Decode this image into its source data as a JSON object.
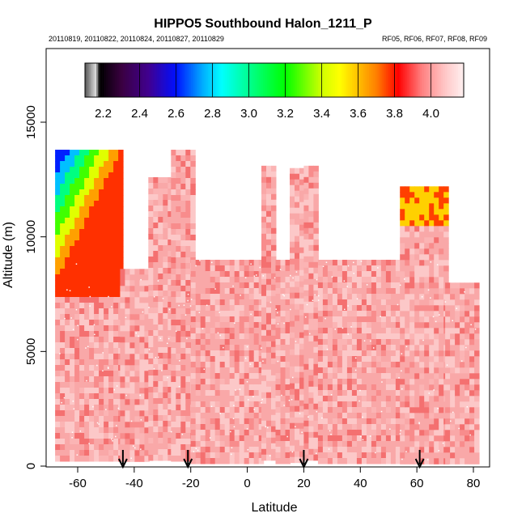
{
  "chart_data": {
    "type": "heatmap",
    "title": "HIPPO5 Southbound Halon_1211_P",
    "subtitle_left": "20110819, 20110822, 20110824, 20110827, 20110829",
    "subtitle_right": "RF05, RF06, RF07, RF08, RF09",
    "xlabel": "Latitude",
    "ylabel": "Altitude (m)",
    "xlim": [
      -70,
      85
    ],
    "ylim": [
      0,
      18000
    ],
    "x_ticks": [
      -60,
      -40,
      -20,
      0,
      20,
      40,
      60,
      80
    ],
    "y_ticks": [
      0,
      5000,
      10000,
      15000
    ],
    "colorbar": {
      "ticks": [
        2.2,
        2.4,
        2.6,
        2.8,
        3.0,
        3.2,
        3.4,
        3.6,
        3.8,
        4.0
      ],
      "tick_labels": [
        "2.2",
        "2.4",
        "2.6",
        "2.8",
        "3.0",
        "3.2",
        "3.4",
        "3.6",
        "3.8",
        "4.0"
      ],
      "range": [
        2.1,
        4.18
      ],
      "stops": [
        {
          "v": 2.1,
          "c": "#555555"
        },
        {
          "v": 2.16,
          "c": "#dddddd"
        },
        {
          "v": 2.18,
          "c": "#000000"
        },
        {
          "v": 2.3,
          "c": "#3a0040"
        },
        {
          "v": 2.45,
          "c": "#400090"
        },
        {
          "v": 2.6,
          "c": "#0010ff"
        },
        {
          "v": 2.75,
          "c": "#00b0ff"
        },
        {
          "v": 2.85,
          "c": "#00ffff"
        },
        {
          "v": 3.0,
          "c": "#00ff90"
        },
        {
          "v": 3.2,
          "c": "#00ff00"
        },
        {
          "v": 3.4,
          "c": "#d0ff00"
        },
        {
          "v": 3.5,
          "c": "#ffff00"
        },
        {
          "v": 3.7,
          "c": "#ff8000"
        },
        {
          "v": 3.82,
          "c": "#ff0000"
        },
        {
          "v": 3.95,
          "c": "#ff8080"
        },
        {
          "v": 4.08,
          "c": "#ffc8c8"
        },
        {
          "v": 4.18,
          "c": "#fff0f0"
        }
      ]
    },
    "field_colors": {
      "dominant": "#f9a8a8",
      "lighter": "#fcc8c8",
      "darker": "#f47070",
      "high_lat_gradient": [
        "#0020ff",
        "#00c0ff",
        "#00ff80",
        "#40ff00",
        "#e0ff00",
        "#ffa000",
        "#ff3000"
      ]
    },
    "flight_columns": [
      {
        "x0": -68,
        "x1": -45,
        "top": 13800,
        "note": "high-latitude gradient column"
      },
      {
        "x0": -45,
        "x1": -35,
        "top": 8600
      },
      {
        "x0": -35,
        "x1": -27,
        "top": 12600
      },
      {
        "x0": -27,
        "x1": -20,
        "top": 13800
      },
      {
        "x0": -20,
        "x1": 5,
        "top": 9000
      },
      {
        "x0": 5,
        "x1": 10,
        "top": 13100
      },
      {
        "x0": 10,
        "x1": 15,
        "top": 9000
      },
      {
        "x0": 15,
        "x1": 20,
        "top": 13000
      },
      {
        "x0": 20,
        "x1": 25,
        "top": 13100
      },
      {
        "x0": 25,
        "x1": 54,
        "top": 9000
      },
      {
        "x0": 54,
        "x1": 70,
        "top": 12200
      },
      {
        "x0": 70,
        "x1": 81,
        "top": 8000
      }
    ],
    "arrows_latitude": [
      -44,
      -21,
      20,
      61
    ],
    "grid": false,
    "legend": "colorbar top-inside"
  }
}
